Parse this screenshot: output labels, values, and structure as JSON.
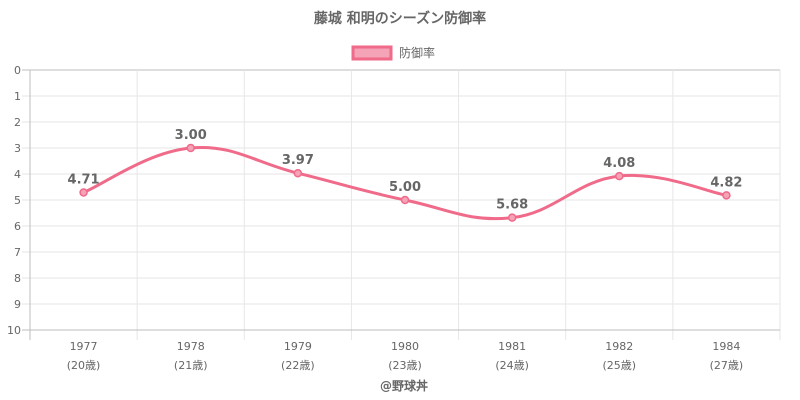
{
  "chart_data": {
    "type": "line",
    "title": "藤城 和明のシーズン防御率",
    "xlabel": "@野球丼",
    "ylabel": "",
    "ylim": [
      0,
      10
    ],
    "y_reversed": true,
    "yticks": [
      "0",
      "1",
      "2",
      "3",
      "4",
      "5",
      "6",
      "7",
      "8",
      "9",
      "10"
    ],
    "categories": [
      "1977",
      "1978",
      "1979",
      "1980",
      "1981",
      "1982",
      "1984"
    ],
    "category_sublabels": [
      "(20歳)",
      "(21歳)",
      "(22歳)",
      "(23歳)",
      "(24歳)",
      "(25歳)",
      "(27歳)"
    ],
    "series": [
      {
        "name": "防御率",
        "values": [
          4.71,
          3.0,
          3.97,
          5.0,
          5.68,
          4.08,
          4.82
        ],
        "value_labels": [
          "4.71",
          "3.00",
          "3.97",
          "5.00",
          "5.68",
          "4.08",
          "4.82"
        ]
      }
    ],
    "legend_position": "top",
    "grid": true,
    "colors": {
      "line": "#f06a8a",
      "legend_fill": "#f5a3b6",
      "grid": "#e6e6e6",
      "axis": "#bdbdbd"
    }
  }
}
